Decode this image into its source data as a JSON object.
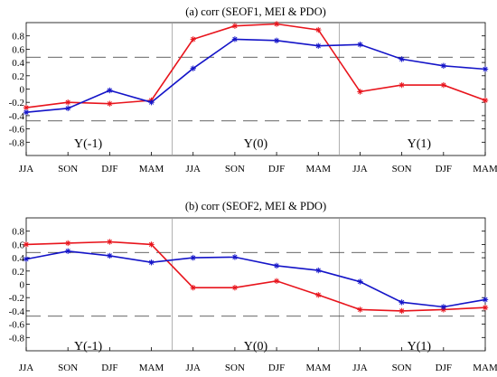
{
  "chart_data": [
    {
      "type": "line",
      "title": "(a) corr (SEOF1, MEI & PDO)",
      "categories": [
        "JJA",
        "SON",
        "DJF",
        "MAM",
        "JJA",
        "SON",
        "DJF",
        "MAM",
        "JJA",
        "SON",
        "DJF",
        "MAM"
      ],
      "ylim": [
        -1.0,
        1.0
      ],
      "yticks": [
        "0.8",
        "0.6",
        "0.4",
        "0.2",
        "0",
        "-0.2",
        "-0.4",
        "-0.6",
        "-0.8"
      ],
      "reference_lines": [
        0.48,
        -0.48
      ],
      "periods": [
        "Y(-1)",
        "Y(0)",
        "Y(1)"
      ],
      "grid": false,
      "series": [
        {
          "values": [
            -0.28,
            -0.2,
            -0.22,
            -0.17,
            0.75,
            0.95,
            0.98,
            0.89,
            -0.04,
            0.06,
            0.06,
            -0.17
          ],
          "color": "#e8141c"
        },
        {
          "values": [
            -0.35,
            -0.29,
            -0.02,
            -0.2,
            0.31,
            0.75,
            0.73,
            0.65,
            0.67,
            0.45,
            0.35,
            0.3
          ],
          "color": "#1414c8"
        }
      ]
    },
    {
      "type": "line",
      "title": "(b) corr (SEOF2, MEI & PDO)",
      "categories": [
        "JJA",
        "SON",
        "DJF",
        "MAM",
        "JJA",
        "SON",
        "DJF",
        "MAM",
        "JJA",
        "SON",
        "DJF",
        "MAM"
      ],
      "ylim": [
        -1.0,
        1.0
      ],
      "yticks": [
        "0.8",
        "0.6",
        "0.4",
        "0.2",
        "0",
        "-0.2",
        "-0.4",
        "-0.6",
        "-0.8"
      ],
      "reference_lines": [
        0.48,
        -0.48
      ],
      "periods": [
        "Y(-1)",
        "Y(0)",
        "Y(1)"
      ],
      "grid": false,
      "series": [
        {
          "values": [
            0.6,
            0.62,
            0.64,
            0.6,
            -0.05,
            -0.05,
            0.05,
            -0.16,
            -0.38,
            -0.4,
            -0.38,
            -0.35
          ],
          "color": "#e8141c"
        },
        {
          "values": [
            0.38,
            0.5,
            0.43,
            0.33,
            0.4,
            0.41,
            0.28,
            0.21,
            0.04,
            -0.27,
            -0.34,
            -0.23
          ],
          "color": "#1414c8"
        }
      ]
    }
  ]
}
